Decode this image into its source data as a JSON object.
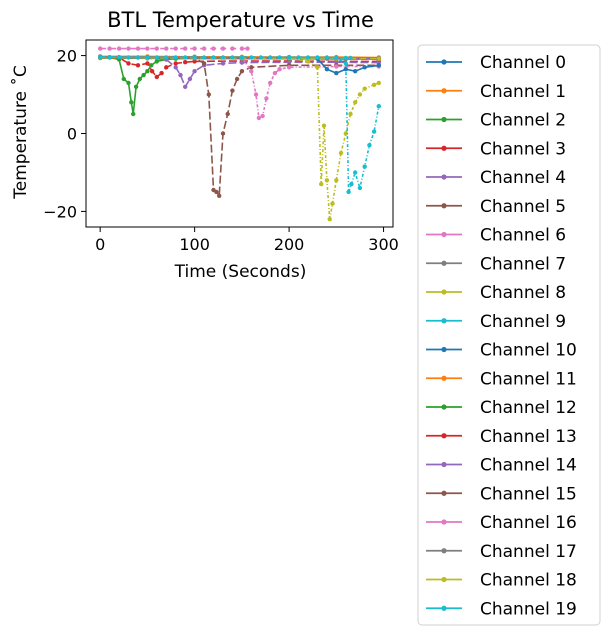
{
  "chart_data": {
    "type": "line",
    "title": "BTL Temperature vs Time",
    "xlabel": "Time (Seconds)",
    "ylabel": "Temperature ˚C",
    "xlim": [
      -15,
      310
    ],
    "ylim": [
      -24,
      24
    ],
    "xticks": [
      0,
      100,
      200,
      300
    ],
    "yticks": [
      -20,
      0,
      20
    ],
    "xtick_labels": [
      "0",
      "100",
      "200",
      "300"
    ],
    "ytick_labels": [
      "−20",
      "0",
      "20"
    ],
    "grid": false,
    "legend_position": "outside-right",
    "colors": [
      "#1f77b4",
      "#ff7f0e",
      "#2ca02c",
      "#d62728",
      "#9467bd",
      "#8c564b",
      "#e377c2",
      "#7f7f7f",
      "#bcbd22",
      "#17becf"
    ],
    "series": [
      {
        "name": "Channel 0",
        "x": [
          0,
          50,
          100,
          150,
          200,
          250,
          295
        ],
        "y": [
          19.5,
          19.4,
          19.4,
          19.3,
          19.3,
          19.2,
          19.2
        ]
      },
      {
        "name": "Channel 1",
        "x": [
          0,
          50,
          100,
          150,
          200,
          250,
          295
        ],
        "y": [
          19.8,
          19.8,
          19.7,
          19.7,
          19.6,
          19.6,
          19.5
        ]
      },
      {
        "name": "Channel 2",
        "x": [
          0,
          10,
          20,
          25,
          30,
          33,
          35,
          38,
          42,
          46,
          50,
          54,
          60,
          70,
          80,
          100,
          150,
          200,
          250,
          295
        ],
        "y": [
          19.5,
          19.5,
          19.0,
          14.0,
          13.0,
          8.0,
          5.0,
          12.0,
          14.0,
          15.0,
          16.0,
          17.5,
          18.5,
          19.0,
          19.2,
          19.3,
          19.3,
          19.3,
          19.2,
          19.2
        ]
      },
      {
        "name": "Channel 3",
        "x": [
          0,
          20,
          30,
          40,
          50,
          55,
          60,
          65,
          70,
          80,
          90,
          100,
          150,
          200,
          250,
          295
        ],
        "y": [
          19.6,
          19.5,
          18.0,
          17.5,
          18.0,
          16.0,
          14.5,
          15.5,
          17.0,
          18.0,
          18.3,
          18.5,
          18.6,
          18.6,
          18.5,
          18.5
        ]
      },
      {
        "name": "Channel 4",
        "x": [
          0,
          40,
          70,
          80,
          85,
          90,
          95,
          100,
          110,
          130,
          150,
          200,
          250,
          295
        ],
        "y": [
          19.5,
          19.5,
          19.0,
          17.0,
          15.0,
          12.0,
          14.0,
          16.0,
          17.5,
          18.0,
          18.2,
          18.3,
          18.3,
          18.2
        ]
      },
      {
        "name": "Channel 5",
        "x": [
          0,
          50,
          100,
          110,
          115,
          120,
          123,
          126,
          130,
          135,
          140,
          145,
          150,
          160,
          200,
          250,
          295
        ],
        "y": [
          19.6,
          19.5,
          19.4,
          18.0,
          10.0,
          -14.5,
          -15.0,
          -16.0,
          0.0,
          5.0,
          11.0,
          14.0,
          16.0,
          17.0,
          17.5,
          17.5,
          17.5
        ]
      },
      {
        "name": "Channel 6",
        "x": [
          0,
          100,
          150,
          160,
          165,
          168,
          172,
          176,
          180,
          185,
          190,
          200,
          250,
          295
        ],
        "y": [
          19.7,
          19.6,
          19.5,
          16.0,
          10.0,
          4.0,
          4.5,
          9.0,
          13.0,
          15.5,
          16.5,
          17.0,
          17.2,
          17.2
        ]
      },
      {
        "name": "Channel 7",
        "x": [
          0,
          50,
          100,
          150,
          200,
          240,
          260,
          295
        ],
        "y": [
          19.5,
          19.4,
          19.4,
          19.3,
          19.2,
          19.2,
          19.1,
          19.1
        ]
      },
      {
        "name": "Channel 8",
        "x": [
          0,
          100,
          200,
          220,
          230,
          234,
          237,
          240,
          243,
          246,
          250,
          255,
          260,
          265,
          270,
          275,
          280,
          290,
          295
        ],
        "y": [
          19.6,
          19.5,
          19.4,
          18.5,
          17.0,
          -13.0,
          2.0,
          -12.0,
          -22.0,
          -18.0,
          -12.0,
          -5.0,
          0.0,
          5.0,
          8.0,
          10.0,
          11.5,
          12.5,
          13.0
        ]
      },
      {
        "name": "Channel 9",
        "x": [
          0,
          100,
          200,
          250,
          260,
          263,
          266,
          270,
          275,
          280,
          285,
          290,
          295
        ],
        "y": [
          19.8,
          19.7,
          19.6,
          19.5,
          18.0,
          -15.0,
          -13.0,
          -10.0,
          -14.0,
          -8.5,
          -3.0,
          0.5,
          7.0
        ]
      },
      {
        "name": "Channel 10",
        "x": [
          0,
          50,
          100,
          150,
          200,
          230,
          240,
          250,
          260,
          270,
          280,
          295
        ],
        "y": [
          19.5,
          19.4,
          19.3,
          19.3,
          19.2,
          19.2,
          16.5,
          15.5,
          16.5,
          16.0,
          17.0,
          17.5
        ]
      },
      {
        "name": "Channel 11",
        "x": [
          0,
          50,
          100,
          150,
          200,
          250,
          295
        ],
        "y": [
          19.7,
          19.6,
          19.6,
          19.5,
          19.5,
          19.4,
          19.4
        ]
      },
      {
        "name": "Channel 12",
        "x": [
          0,
          50,
          100,
          150,
          200,
          250,
          295
        ],
        "y": [
          19.4,
          19.4,
          19.3,
          19.3,
          19.2,
          19.2,
          19.1
        ]
      },
      {
        "name": "Channel 13",
        "x": [
          0,
          50,
          100,
          150,
          200,
          250,
          295
        ],
        "y": [
          19.6,
          19.5,
          19.5,
          19.4,
          19.4,
          19.3,
          19.3
        ]
      },
      {
        "name": "Channel 14",
        "x": [
          0,
          50,
          100,
          150,
          200,
          250,
          295
        ],
        "y": [
          19.5,
          19.5,
          19.4,
          19.4,
          19.3,
          19.3,
          19.2
        ]
      },
      {
        "name": "Channel 15",
        "x": [
          0,
          50,
          100,
          150,
          200,
          250,
          295
        ],
        "y": [
          19.4,
          19.3,
          19.3,
          19.2,
          19.2,
          19.1,
          19.1
        ]
      },
      {
        "name": "Channel 16",
        "x": [
          0,
          10,
          20,
          30,
          40,
          50,
          60,
          70,
          80,
          90,
          100,
          110,
          120,
          130,
          140,
          150,
          156
        ],
        "y": [
          21.8,
          21.8,
          21.8,
          21.8,
          21.8,
          21.8,
          21.8,
          21.8,
          21.8,
          21.8,
          21.8,
          21.8,
          21.8,
          21.8,
          21.8,
          21.8,
          21.8
        ]
      },
      {
        "name": "Channel 17",
        "x": [
          0,
          50,
          100,
          150,
          200,
          250,
          295
        ],
        "y": [
          19.7,
          19.6,
          19.6,
          19.5,
          19.5,
          19.4,
          19.4
        ]
      },
      {
        "name": "Channel 18",
        "x": [
          0,
          50,
          100,
          150,
          200,
          250,
          295
        ],
        "y": [
          19.5,
          19.4,
          19.4,
          19.3,
          19.3,
          19.2,
          19.2
        ]
      },
      {
        "name": "Channel 19",
        "x": [
          0,
          10,
          20,
          30,
          40,
          50,
          60,
          70,
          80,
          90,
          100,
          110,
          120,
          130,
          140,
          150,
          160,
          170,
          180,
          190,
          200,
          210,
          220,
          230,
          240,
          250,
          260,
          265
        ],
        "y": [
          19.6,
          19.6,
          19.6,
          19.5,
          19.5,
          19.5,
          19.5,
          19.5,
          19.5,
          19.5,
          19.5,
          19.5,
          19.5,
          19.5,
          19.5,
          19.5,
          19.5,
          19.5,
          19.5,
          19.5,
          19.5,
          19.5,
          19.5,
          19.5,
          19.5,
          19.4,
          19.4,
          19.4
        ]
      }
    ]
  }
}
